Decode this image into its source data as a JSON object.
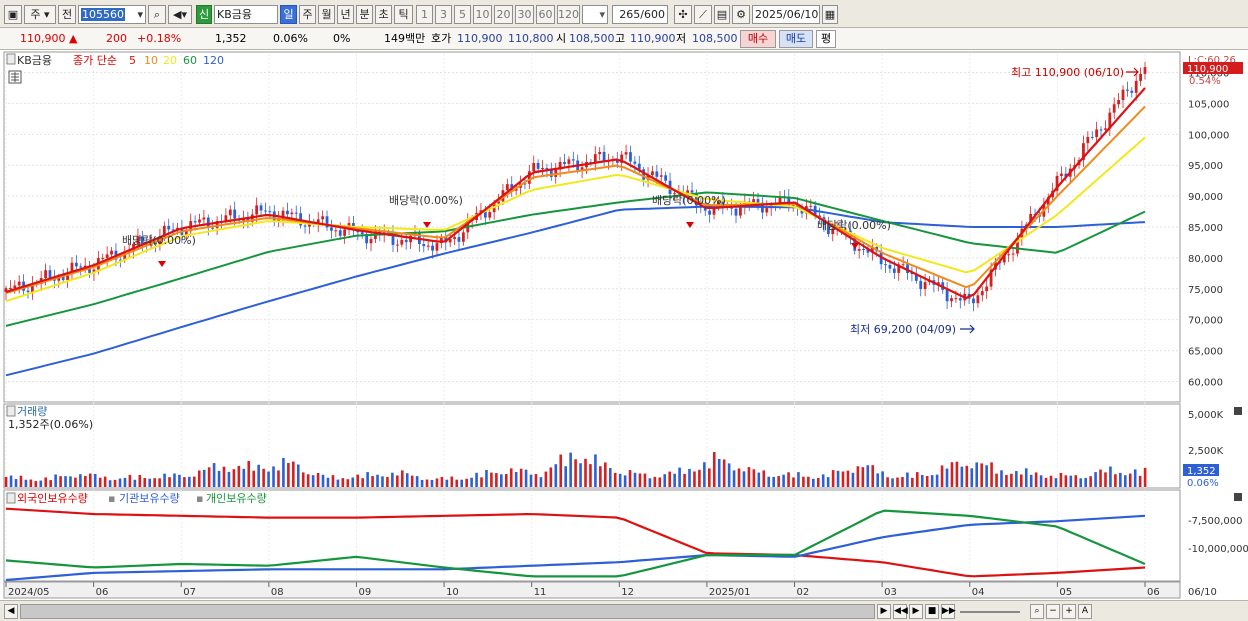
{
  "toolbar": {
    "period_type": "주",
    "prev_label": "전",
    "stock_code": "105560",
    "credit_badge": "신",
    "stock_name": "KB금융",
    "tf_day": "일",
    "tf_week": "주",
    "tf_month": "월",
    "tf_year": "년",
    "tf_min": "분",
    "tf_sec": "초",
    "tf_tick": "틱",
    "intervals": [
      "1",
      "3",
      "5",
      "10",
      "20",
      "30",
      "60",
      "120"
    ],
    "count_value": "265",
    "count_total": "/600",
    "date_value": "2025/06/10"
  },
  "quote": {
    "price": "110,900",
    "change": "200",
    "change_pct": "+0.18%",
    "volume": "1,352",
    "vol_ratio": "0.06%",
    "zero_pct": "0%",
    "amount": "149백만",
    "bid_label": "호가",
    "bid1": "110,900",
    "bid2": "110,800",
    "open_label": "시",
    "open": "108,500",
    "high_label": "고",
    "high": "110,900",
    "low_label": "저",
    "low": "108,500",
    "buy_label": "매수",
    "sell_label": "매도",
    "eval_label": "평"
  },
  "price_panel": {
    "stock": "KB금융",
    "legend_prefix": "종가 단순",
    "ma_legend": [
      {
        "period": "5",
        "color": "#dd1111"
      },
      {
        "period": "10",
        "color": "#f08a18"
      },
      {
        "period": "20",
        "color": "#f2e81c"
      },
      {
        "period": "60",
        "color": "#16963c"
      },
      {
        "period": "120",
        "color": "#2d5fd6"
      }
    ],
    "high_annotation": "최고 110,900 (06/10)",
    "low_annotation": "최저 69,200 (04/09)",
    "dividend_label": "배당락(0.00%)",
    "price_tag": "110,900",
    "pct_tag": "0.54%",
    "top_label": "L:C:60.26"
  },
  "volume_panel": {
    "title": "거래량",
    "subtitle": "1,352주(0.06%)",
    "axis_ticks": [
      "5,000K",
      "2,500K"
    ],
    "tag_value": "1,352",
    "tag_pct": "0.06%"
  },
  "holdings_panel": {
    "legend": [
      {
        "name": "외국인보유수량",
        "color": "#dd1111"
      },
      {
        "name": "기관보유수량",
        "color": "#2d5fd6"
      },
      {
        "name": "개인보유수량",
        "color": "#16963c"
      }
    ],
    "axis_ticks": [
      "-7,500,000",
      "-10,000,000"
    ]
  },
  "x_axis": {
    "labels": [
      "2024/05",
      "06",
      "07",
      "08",
      "09",
      "10",
      "11",
      "12",
      "2025/01",
      "02",
      "03",
      "04",
      "05",
      "06"
    ],
    "end_label": "06/10"
  },
  "chart_data": {
    "type": "line",
    "x": [
      "2024/05",
      "2024/06",
      "2024/07",
      "2024/08",
      "2024/09",
      "2024/10",
      "2024/11",
      "2024/12",
      "2025/01",
      "2025/02",
      "2025/03",
      "2025/04",
      "2025/05",
      "2025/06/10"
    ],
    "series": [
      {
        "name": "종가",
        "values": [
          74500,
          79000,
          85000,
          87500,
          84000,
          82000,
          94000,
          96500,
          88000,
          89000,
          79500,
          72500,
          92000,
          110900
        ]
      },
      {
        "name": "5",
        "values": [
          74500,
          78800,
          84800,
          87000,
          84500,
          82500,
          93800,
          96000,
          88000,
          89000,
          80000,
          73200,
          91500,
          107500
        ]
      },
      {
        "name": "10",
        "values": [
          74300,
          78500,
          84300,
          86500,
          84800,
          83200,
          93000,
          95000,
          88500,
          88800,
          80800,
          75000,
          90000,
          104500
        ]
      },
      {
        "name": "20",
        "values": [
          73000,
          77600,
          83500,
          86000,
          85000,
          84500,
          91000,
          93500,
          89500,
          88300,
          81600,
          77500,
          87000,
          99500
        ]
      },
      {
        "name": "60",
        "values": [
          69000,
          72500,
          76700,
          81000,
          83600,
          84300,
          87000,
          89000,
          90600,
          89700,
          86000,
          82400,
          80800,
          87500
        ]
      },
      {
        "name": "120",
        "values": [
          61000,
          64500,
          68800,
          73000,
          77000,
          80700,
          84100,
          87800,
          88300,
          88200,
          85800,
          85000,
          85000,
          85800
        ]
      },
      {
        "name": "외국인보유수량",
        "values": [
          -7200000,
          -7500000,
          -7600000,
          -7700000,
          -7700000,
          -7600000,
          -7500000,
          -7700000,
          -9700000,
          -9800000,
          -10200000,
          -11000000,
          -10800000,
          -10500000
        ]
      },
      {
        "name": "기관보유수량",
        "values": [
          -11200000,
          -10800000,
          -10700000,
          -10600000,
          -10600000,
          -10600000,
          -10400000,
          -10200000,
          -9800000,
          -9900000,
          -8800000,
          -8100000,
          -7900000,
          -7600000
        ]
      },
      {
        "name": "개인보유수량",
        "values": [
          -10100000,
          -10500000,
          -10300000,
          -10400000,
          -9900000,
          -10500000,
          -11000000,
          -11000000,
          -9800000,
          -9800000,
          -7300000,
          -7600000,
          -8200000,
          -10300000
        ]
      }
    ],
    "volume_k": [
      900,
      700,
      1200,
      800,
      950,
      1050,
      1900,
      1800,
      2200,
      850,
      1000,
      1300,
      700,
      900,
      1600,
      1200,
      3100,
      1700,
      1000,
      1400,
      2600,
      1400,
      1100,
      1000,
      2000,
      900,
      1300,
      2400,
      1500,
      1200,
      950,
      1500,
      1350
    ],
    "yticks_price": [
      110000,
      105000,
      100000,
      95000,
      90000,
      85000,
      80000,
      75000,
      70000,
      65000,
      60000
    ],
    "ylim_price": [
      57000,
      113000
    ],
    "ylim_volume": [
      0,
      5500
    ],
    "ylim_holdings": [
      -11200000,
      -6600000
    ],
    "high": {
      "value": 110900,
      "date": "06/10"
    },
    "low": {
      "value": 69200,
      "date": "04/09"
    }
  }
}
